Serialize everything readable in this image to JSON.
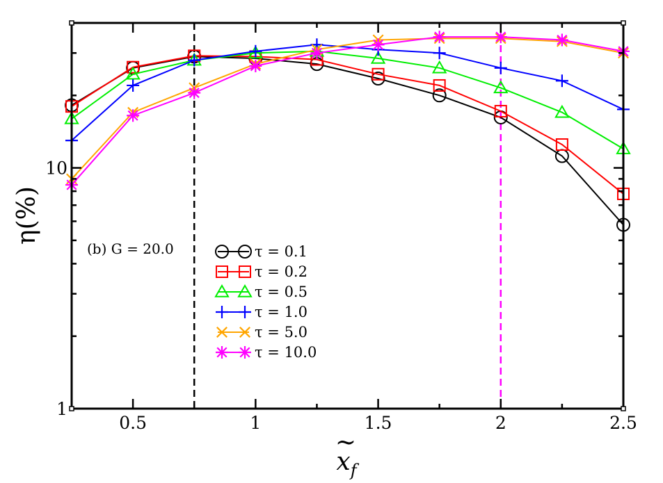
{
  "chart_data": {
    "type": "line",
    "title": "",
    "xlabel": "x̃_f",
    "ylabel": "η(%)",
    "yscale": "log",
    "xlim": [
      0.25,
      2.5
    ],
    "ylim": [
      1,
      40
    ],
    "x_ticks": [
      0.5,
      1,
      1.5,
      2,
      2.5
    ],
    "x_tick_labels": [
      "0.5",
      "1",
      "1.5",
      "2",
      "2.5"
    ],
    "y_ticks": [
      1,
      10
    ],
    "y_tick_labels": [
      "1",
      "10"
    ],
    "grid": false,
    "legend_position": "lower-center",
    "annotation": "(b) G = 20.0",
    "vlines": [
      {
        "x": 0.75,
        "color": "#000000",
        "style": "dashed"
      },
      {
        "x": 2.0,
        "color": "#ff00ff",
        "style": "dashed"
      }
    ],
    "x": [
      0.25,
      0.5,
      0.75,
      1.0,
      1.25,
      1.5,
      1.75,
      2.0,
      2.25,
      2.5
    ],
    "series": [
      {
        "name": "τ = 0.1",
        "color": "#000000",
        "marker": "circle",
        "values": [
          18.2,
          26.0,
          29.0,
          28.5,
          27.0,
          23.5,
          20.0,
          16.2,
          11.2,
          5.8
        ]
      },
      {
        "name": "τ = 0.2",
        "color": "#ff0000",
        "marker": "square",
        "values": [
          18.0,
          26.2,
          29.2,
          29.0,
          28.2,
          24.5,
          22.0,
          17.2,
          12.5,
          7.8
        ]
      },
      {
        "name": "τ = 0.5",
        "color": "#00ee00",
        "marker": "triangle",
        "values": [
          16.0,
          24.5,
          28.0,
          30.0,
          30.5,
          28.5,
          26.0,
          21.5,
          17.0,
          12.0
        ]
      },
      {
        "name": "τ = 1.0",
        "color": "#0000ff",
        "marker": "plus",
        "values": [
          13.0,
          22.0,
          28.0,
          30.5,
          32.5,
          31.0,
          30.0,
          26.0,
          23.0,
          17.5
        ]
      },
      {
        "name": "τ = 5.0",
        "color": "#ffa500",
        "marker": "x",
        "values": [
          9.0,
          17.0,
          21.5,
          27.0,
          31.0,
          34.0,
          34.5,
          34.5,
          33.5,
          30.0
        ]
      },
      {
        "name": "τ = 10.0",
        "color": "#ff00ff",
        "marker": "star",
        "values": [
          8.5,
          16.5,
          20.5,
          26.5,
          30.0,
          32.5,
          35.0,
          35.0,
          34.0,
          30.5
        ]
      }
    ]
  }
}
